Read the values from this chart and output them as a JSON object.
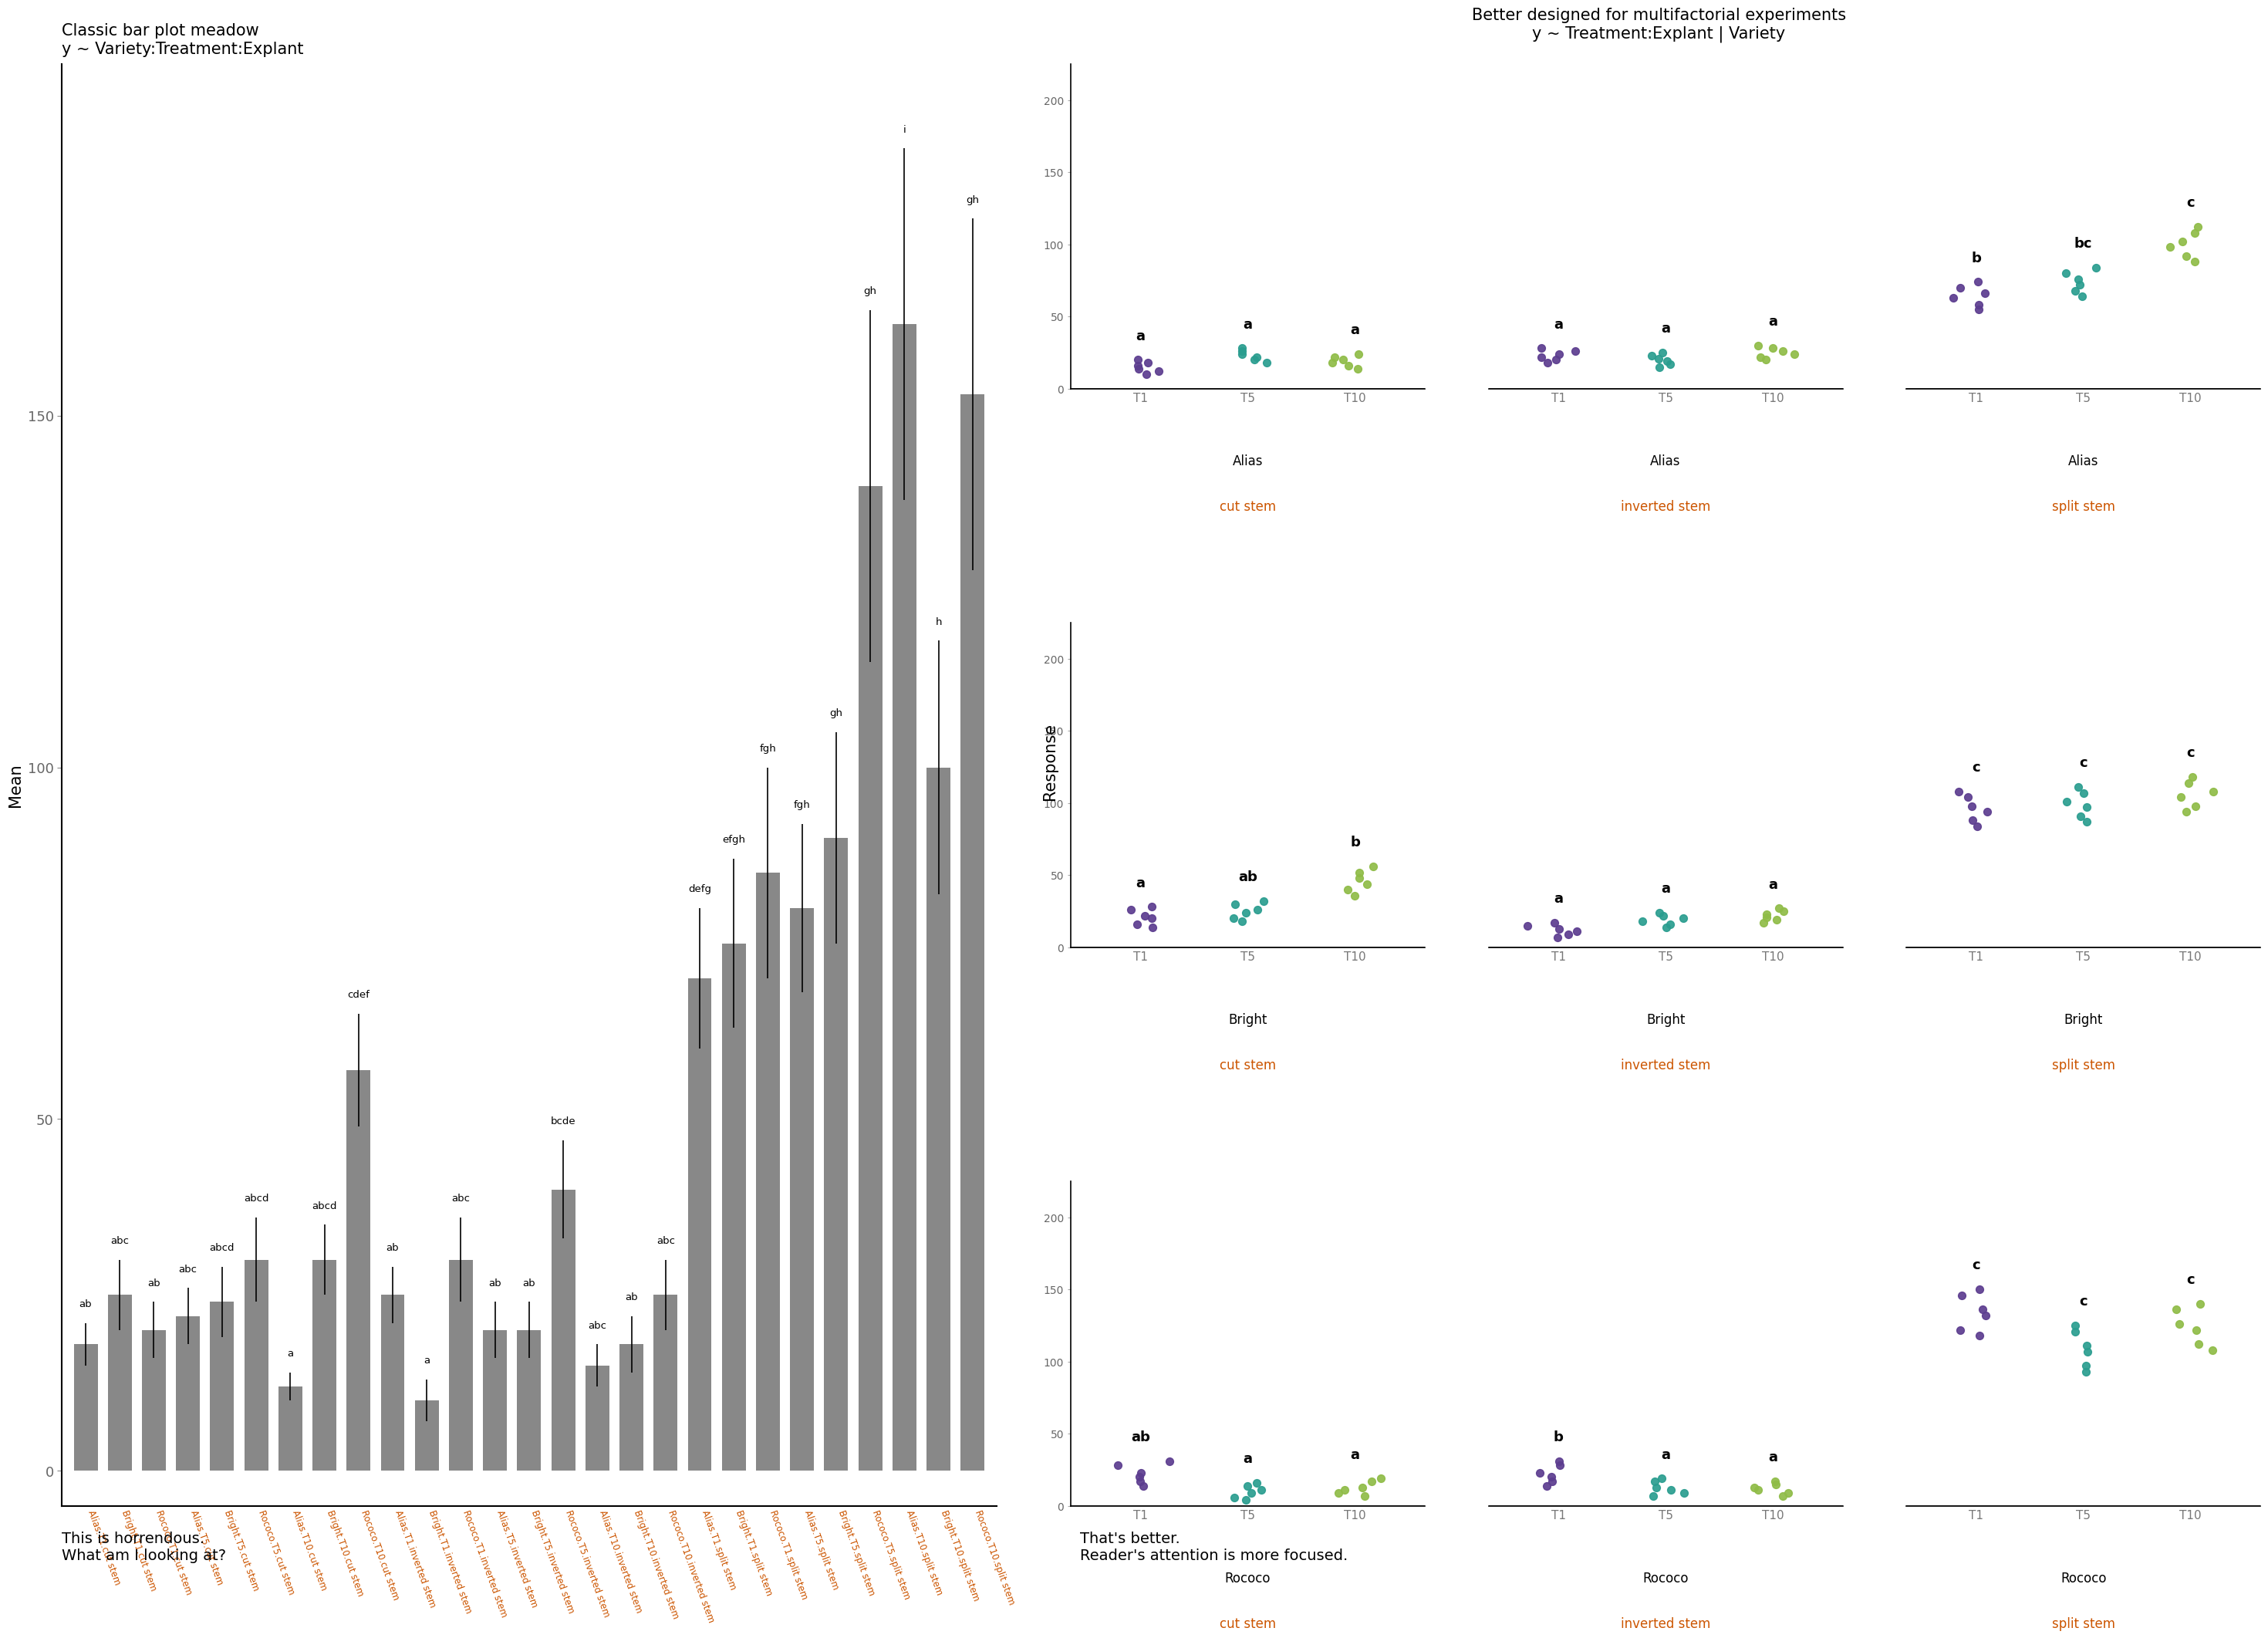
{
  "bar_labels": [
    "Alias.T1.cut stem",
    "Bright.T1.cut stem",
    "Rococo.T1.cut stem",
    "Alias.T5.cut stem",
    "Bright.T5.cut stem",
    "Rococo.T5.cut stem",
    "Alias.T10.cut stem",
    "Bright.T10.cut stem",
    "Rococo.T10.cut stem",
    "Alias.T1.inverted stem",
    "Bright.T1.inverted stem",
    "Rococo.T1.inverted stem",
    "Alias.T5.inverted stem",
    "Bright.T5.inverted stem",
    "Rococo.T5.inverted stem",
    "Alias.T10.inverted stem",
    "Bright.T10.inverted stem",
    "Rococo.T10.inverted stem",
    "Alias.T1.split stem",
    "Bright.T1.split stem",
    "Rococo.T1.split stem",
    "Alias.T5.split stem",
    "Bright.T5.split stem",
    "Rococo.T5.split stem",
    "Alias.T10.split stem",
    "Bright.T10.split stem",
    "Rococo.T10.split stem"
  ],
  "bar_means": [
    18,
    25,
    20,
    22,
    24,
    30,
    12,
    30,
    57,
    25,
    10,
    30,
    20,
    20,
    40,
    15,
    18,
    25,
    70,
    75,
    85,
    80,
    90,
    140,
    163,
    100,
    153
  ],
  "bar_errors": [
    3,
    5,
    4,
    4,
    5,
    6,
    2,
    5,
    8,
    4,
    3,
    6,
    4,
    4,
    7,
    3,
    4,
    5,
    10,
    12,
    15,
    12,
    15,
    25,
    25,
    18,
    25
  ],
  "bar_letters": [
    "ab",
    "abc",
    "ab",
    "abc",
    "abcd",
    "abcd",
    "a",
    "abcd",
    "cdef",
    "ab",
    "a",
    "abc",
    "ab",
    "ab",
    "bcde",
    "abc",
    "ab",
    "abc",
    "defg",
    "efgh",
    "fgh",
    "fgh",
    "gh",
    "gh",
    "i",
    "h",
    "gh"
  ],
  "bar_color": "#888888",
  "bar_ylim": [
    -5,
    200
  ],
  "bar_yticks": [
    0,
    50,
    100,
    150
  ],
  "bar_ylabel": "Mean",
  "bar_title1": "Classic bar plot meadow",
  "bar_title2": "y ~ Variety:Treatment:Explant",
  "bar_caption1": "This is horrendous.",
  "bar_caption2": "What am I looking at?",
  "dot_title1": "Better designed for multifactorial experiments",
  "dot_title2": "y ~ Treatment:Explant | Variety",
  "dot_ylabel": "Response",
  "dot_caption1": "That's better.",
  "dot_caption2": "Reader's attention is more focused.",
  "varieties": [
    "Alias",
    "Bright",
    "Rococo"
  ],
  "explants": [
    "cut stem",
    "inverted stem",
    "split stem"
  ],
  "treatments": [
    "T1",
    "T5",
    "T10"
  ],
  "treat_colors": [
    "#5c3d8f",
    "#2a9d8f",
    "#8fbc47"
  ],
  "dot_data": {
    "Alias_cut stem_T1": [
      10,
      14,
      18,
      12,
      16,
      20
    ],
    "Alias_cut stem_T5": [
      18,
      22,
      26,
      20,
      24,
      28
    ],
    "Alias_cut stem_T10": [
      14,
      18,
      22,
      16,
      20,
      24
    ],
    "Alias_inverted stem_T1": [
      18,
      22,
      26,
      20,
      24,
      28
    ],
    "Alias_inverted stem_T5": [
      15,
      19,
      23,
      17,
      21,
      25
    ],
    "Alias_inverted stem_T10": [
      20,
      24,
      28,
      22,
      26,
      30
    ],
    "Alias_split stem_T1": [
      55,
      63,
      70,
      58,
      66,
      74
    ],
    "Alias_split stem_T5": [
      64,
      72,
      80,
      68,
      76,
      84
    ],
    "Alias_split stem_T10": [
      88,
      98,
      108,
      92,
      102,
      112
    ],
    "Bright_cut stem_T1": [
      14,
      20,
      26,
      16,
      22,
      28
    ],
    "Bright_cut stem_T5": [
      18,
      24,
      30,
      20,
      26,
      32
    ],
    "Bright_cut stem_T10": [
      36,
      44,
      52,
      40,
      48,
      56
    ],
    "Bright_inverted stem_T1": [
      7,
      11,
      15,
      9,
      13,
      17
    ],
    "Bright_inverted stem_T5": [
      14,
      18,
      22,
      16,
      20,
      24
    ],
    "Bright_inverted stem_T10": [
      17,
      21,
      25,
      19,
      23,
      27
    ],
    "Bright_split stem_T1": [
      84,
      94,
      104,
      88,
      98,
      108
    ],
    "Bright_split stem_T5": [
      87,
      97,
      107,
      91,
      101,
      111
    ],
    "Bright_split stem_T10": [
      94,
      104,
      114,
      98,
      108,
      118
    ],
    "Rococo_cut stem_T1": [
      14,
      20,
      28,
      17,
      23,
      31
    ],
    "Rococo_cut stem_T5": [
      4,
      9,
      14,
      6,
      11,
      16
    ],
    "Rococo_cut stem_T10": [
      7,
      11,
      17,
      9,
      13,
      19
    ],
    "Rococo_inverted stem_T1": [
      14,
      20,
      28,
      17,
      23,
      31
    ],
    "Rococo_inverted stem_T5": [
      7,
      11,
      17,
      9,
      13,
      19
    ],
    "Rococo_inverted stem_T10": [
      7,
      11,
      15,
      9,
      13,
      17
    ],
    "Rococo_split stem_T1": [
      118,
      132,
      146,
      122,
      136,
      150
    ],
    "Rococo_split stem_T5": [
      93,
      107,
      121,
      97,
      111,
      125
    ],
    "Rococo_split stem_T10": [
      108,
      122,
      136,
      112,
      126,
      140
    ]
  },
  "dot_letters": {
    "Alias_cut stem_T1": "a",
    "Alias_cut stem_T5": "a",
    "Alias_cut stem_T10": "a",
    "Alias_inverted stem_T1": "a",
    "Alias_inverted stem_T5": "a",
    "Alias_inverted stem_T10": "a",
    "Alias_split stem_T1": "b",
    "Alias_split stem_T5": "bc",
    "Alias_split stem_T10": "c",
    "Bright_cut stem_T1": "a",
    "Bright_cut stem_T5": "ab",
    "Bright_cut stem_T10": "b",
    "Bright_inverted stem_T1": "a",
    "Bright_inverted stem_T5": "a",
    "Bright_inverted stem_T10": "a",
    "Bright_split stem_T1": "c",
    "Bright_split stem_T5": "c",
    "Bright_split stem_T10": "c",
    "Rococo_cut stem_T1": "ab",
    "Rococo_cut stem_T5": "a",
    "Rococo_cut stem_T10": "a",
    "Rococo_inverted stem_T1": "b",
    "Rococo_inverted stem_T5": "a",
    "Rococo_inverted stem_T10": "a",
    "Rococo_split stem_T1": "c",
    "Rococo_split stem_T5": "c",
    "Rococo_split stem_T10": "c"
  },
  "dot_yticks": [
    0,
    50,
    100,
    150,
    200
  ],
  "dot_ylim": [
    0,
    225
  ]
}
